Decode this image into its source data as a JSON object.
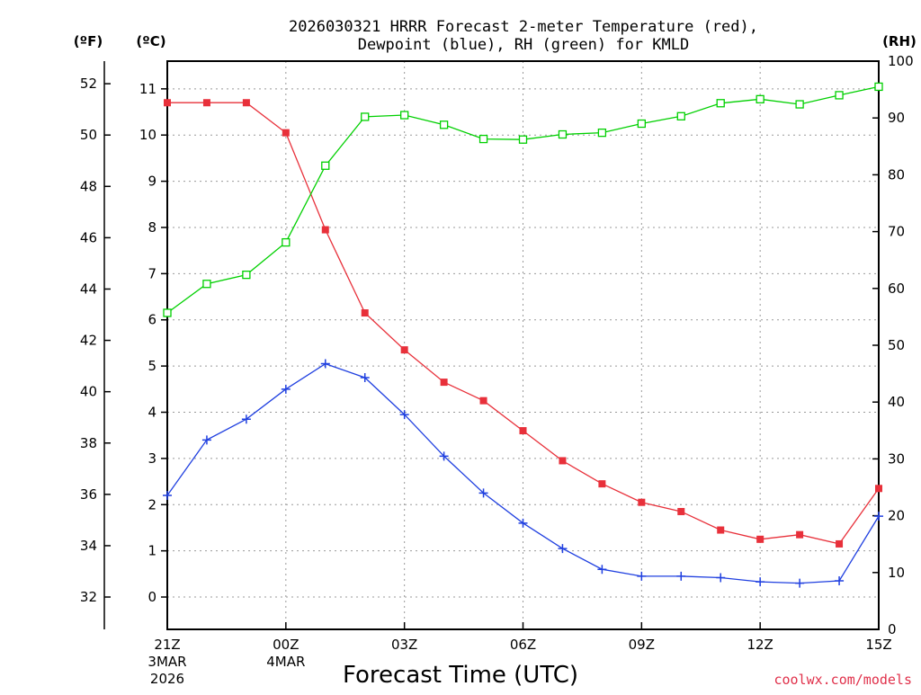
{
  "title_line1": "2026030321 HRRR Forecast 2-meter Temperature (red),",
  "title_line2": "Dewpoint (blue), RH (green) for KMLD",
  "unit_f": "(ºF)",
  "unit_c": "(ºC)",
  "unit_rh": "(RH)",
  "credit": "coolwx.com/models",
  "colors": {
    "temperature": "#e8303a",
    "dewpoint": "#2040e0",
    "rh": "#00d000",
    "grid": "#999999"
  },
  "chart_data": {
    "type": "line",
    "title": "2026030321 HRRR Forecast 2-meter Temperature (red), Dewpoint (blue), RH (green) for KMLD",
    "xlabel": "Forecast Time (UTC)",
    "x": [
      0,
      1,
      2,
      3,
      4,
      5,
      6,
      7,
      8,
      9,
      10,
      11,
      12,
      13,
      14,
      15,
      16,
      17,
      18
    ],
    "x_meaning": "hours after 21Z 3MAR2026",
    "xlim": [
      0,
      18
    ],
    "xticks": [
      {
        "x": 0,
        "label": "21Z",
        "sub1": "3MAR",
        "sub2": "2026"
      },
      {
        "x": 3,
        "label": "00Z",
        "sub1": "4MAR",
        "sub2": ""
      },
      {
        "x": 6,
        "label": "03Z",
        "sub1": "",
        "sub2": ""
      },
      {
        "x": 9,
        "label": "06Z",
        "sub1": "",
        "sub2": ""
      },
      {
        "x": 12,
        "label": "09Z",
        "sub1": "",
        "sub2": ""
      },
      {
        "x": 15,
        "label": "12Z",
        "sub1": "",
        "sub2": ""
      },
      {
        "x": 18,
        "label": "15Z",
        "sub1": "",
        "sub2": ""
      }
    ],
    "y_left_c": {
      "label": "ºC",
      "lim": [
        -0.7,
        11.6
      ],
      "ticks": [
        0,
        1,
        2,
        3,
        4,
        5,
        6,
        7,
        8,
        9,
        10,
        11
      ]
    },
    "y_left_f": {
      "label": "ºF",
      "ticks": [
        32,
        34,
        36,
        38,
        40,
        42,
        44,
        46,
        48,
        50,
        52
      ],
      "conversion": "F = C*9/5 + 32"
    },
    "y_right": {
      "label": "RH",
      "lim": [
        0,
        100
      ],
      "ticks": [
        0,
        10,
        20,
        30,
        40,
        50,
        60,
        70,
        80,
        90,
        100
      ]
    },
    "series": [
      {
        "name": "Temperature",
        "axis": "celsius",
        "marker": "filled-square",
        "values": [
          10.7,
          10.7,
          10.7,
          10.05,
          7.95,
          6.15,
          5.35,
          4.65,
          4.25,
          3.6,
          2.95,
          2.45,
          2.05,
          1.85,
          1.45,
          1.25,
          1.35,
          1.15,
          2.35
        ]
      },
      {
        "name": "Dewpoint",
        "axis": "celsius",
        "marker": "plus",
        "values": [
          2.2,
          3.4,
          3.85,
          4.5,
          5.05,
          4.75,
          3.95,
          3.05,
          2.25,
          1.6,
          1.05,
          0.6,
          0.45,
          0.45,
          0.42,
          0.33,
          0.3,
          0.35,
          1.75
        ]
      },
      {
        "name": "RH",
        "axis": "rh",
        "marker": "open-square",
        "values": [
          55.7,
          60.8,
          62.4,
          68.1,
          81.6,
          90.2,
          90.5,
          88.8,
          86.3,
          86.2,
          87.1,
          87.4,
          89.0,
          90.3,
          92.6,
          93.3,
          92.4,
          94.0,
          95.5
        ]
      }
    ]
  }
}
